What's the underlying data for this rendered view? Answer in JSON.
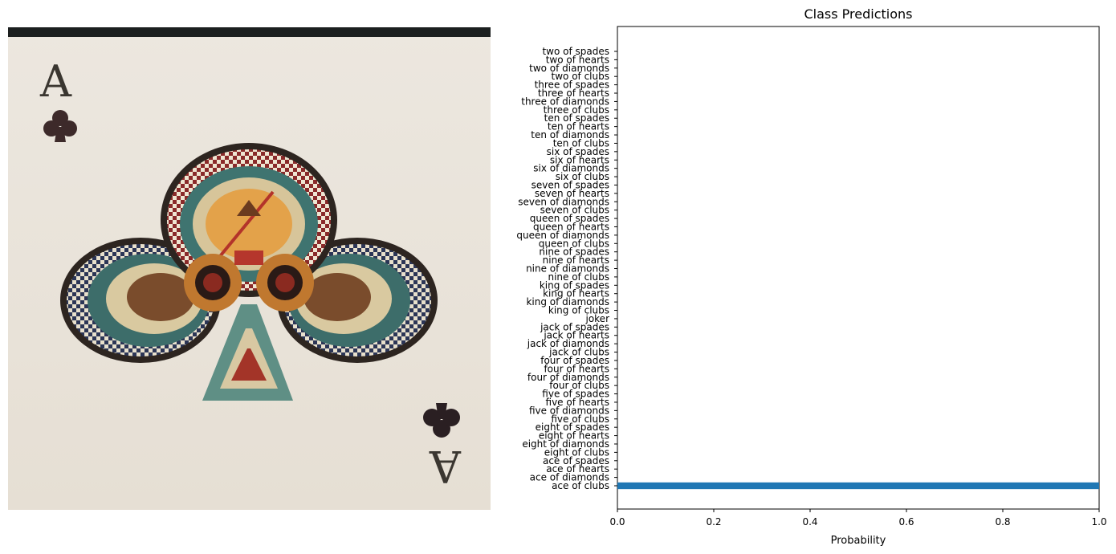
{
  "image_panel": {
    "description_icon": "ace-of-clubs-card-image",
    "card_rank": "A",
    "card_suit": "clubs"
  },
  "chart_data": {
    "type": "bar",
    "orientation": "horizontal",
    "title": "Class Predictions",
    "xlabel": "Probability",
    "ylabel": "",
    "xlim": [
      0,
      1
    ],
    "xticks": [
      "0.0",
      "0.2",
      "0.4",
      "0.6",
      "0.8",
      "1.0"
    ],
    "grid": false,
    "bar_color": "#1f77b4",
    "categories": [
      "ace of clubs",
      "ace of diamonds",
      "ace of hearts",
      "ace of spades",
      "eight of clubs",
      "eight of diamonds",
      "eight of hearts",
      "eight of spades",
      "five of clubs",
      "five of diamonds",
      "five of hearts",
      "five of spades",
      "four of clubs",
      "four of diamonds",
      "four of hearts",
      "four of spades",
      "jack of clubs",
      "jack of diamonds",
      "jack of hearts",
      "jack of spades",
      "joker",
      "king of clubs",
      "king of diamonds",
      "king of hearts",
      "king of spades",
      "nine of clubs",
      "nine of diamonds",
      "nine of hearts",
      "nine of spades",
      "queen of clubs",
      "queen of diamonds",
      "queen of hearts",
      "queen of spades",
      "seven of clubs",
      "seven of diamonds",
      "seven of hearts",
      "seven of spades",
      "six of clubs",
      "six of diamonds",
      "six of hearts",
      "six of spades",
      "ten of clubs",
      "ten of diamonds",
      "ten of hearts",
      "ten of spades",
      "three of clubs",
      "three of diamonds",
      "three of hearts",
      "three of spades",
      "two of clubs",
      "two of diamonds",
      "two of hearts",
      "two of spades"
    ],
    "values": [
      1.0,
      0,
      0,
      0,
      0,
      0,
      0,
      0,
      0,
      0,
      0,
      0,
      0,
      0,
      0,
      0,
      0,
      0,
      0,
      0,
      0,
      0,
      0,
      0,
      0,
      0,
      0,
      0,
      0,
      0,
      0,
      0,
      0,
      0,
      0,
      0,
      0,
      0,
      0,
      0,
      0,
      0,
      0,
      0,
      0,
      0,
      0,
      0,
      0,
      0,
      0,
      0,
      0
    ]
  }
}
